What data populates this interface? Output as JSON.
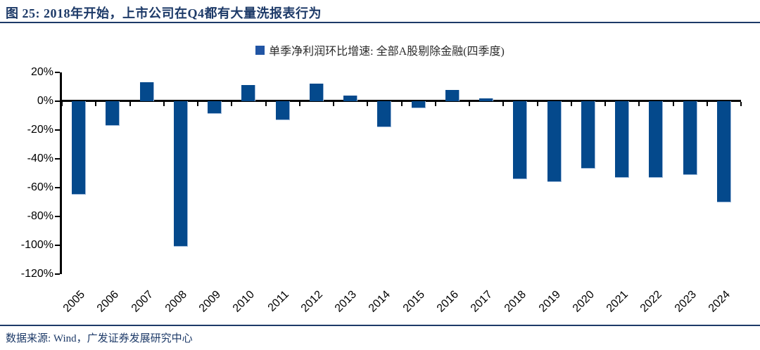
{
  "header": {
    "title": "图 25: 2018年开始，上市公司在Q4都有大量洗报表行为"
  },
  "legend": {
    "label": "单季净利润环比增速: 全部A股剔除金融(四季度)",
    "marker_color": "#2155a4"
  },
  "chart_data": {
    "type": "bar",
    "title": "单季净利润环比增速: 全部A股剔除金融(四季度)",
    "categories": [
      "2005",
      "2006",
      "2007",
      "2008",
      "2009",
      "2010",
      "2011",
      "2012",
      "2013",
      "2014",
      "2015",
      "2016",
      "2017",
      "2018",
      "2019",
      "2020",
      "2021",
      "2022",
      "2023",
      "2024"
    ],
    "values": [
      -65,
      -17,
      13,
      -101,
      -9,
      11,
      -13,
      12,
      4,
      -18,
      -5,
      8,
      2,
      -54,
      -56,
      -47,
      -53,
      -53,
      -51,
      -70
    ],
    "unit": "%",
    "xlabel": "",
    "ylabel": "",
    "ylim": [
      -120,
      20
    ],
    "ytick_step": 20,
    "ytick_labels": [
      "20%",
      "0%",
      "-20%",
      "-40%",
      "-60%",
      "-80%",
      "-100%",
      "-120%"
    ],
    "grid": false,
    "legend_position": "top-center",
    "bar_color": "#04498c",
    "bar_edge_color": "#9db8d9"
  },
  "footer": {
    "source": "数据来源: Wind，广发证券发展研究中心"
  },
  "colors": {
    "accent_navy": "#1d3a68",
    "axis_black": "#000000"
  }
}
